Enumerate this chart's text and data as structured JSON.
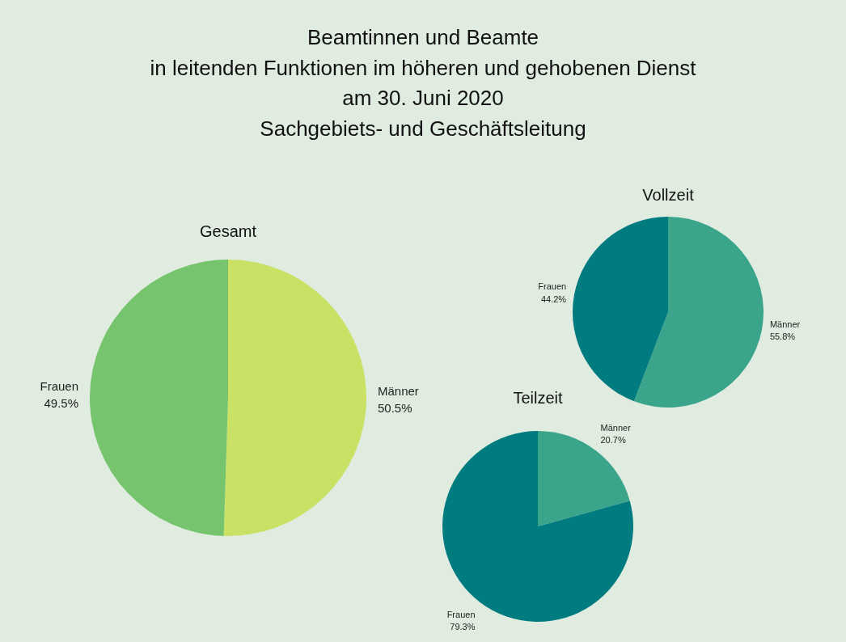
{
  "chart_data": [
    {
      "type": "pie",
      "title": "Beamtinnen und Beamte\nin leitenden Funktionen im höheren und gehobenen Dienst\nam 30. Juni 2020\nSachgebiets- und Geschäftsleitung",
      "subtitle": "Gesamt",
      "categories": [
        "Männer",
        "Frauen"
      ],
      "values": [
        50.5,
        49.5
      ],
      "colors": [
        "#c9e265",
        "#77c46e"
      ],
      "value_labels": [
        "50.5%",
        "49.5%"
      ],
      "legend": false
    },
    {
      "type": "pie",
      "title": "Vollzeit",
      "categories": [
        "Männer",
        "Frauen"
      ],
      "values": [
        55.8,
        44.2
      ],
      "colors": [
        "#3aa58a",
        "#007b7f"
      ],
      "value_labels": [
        "55.8%",
        "44.2%"
      ],
      "legend": false
    },
    {
      "type": "pie",
      "title": "Teilzeit",
      "categories": [
        "Männer",
        "Frauen"
      ],
      "values": [
        20.7,
        79.3
      ],
      "colors": [
        "#3aa58a",
        "#007b7f"
      ],
      "value_labels": [
        "20.7%",
        "79.3%"
      ],
      "legend": false
    }
  ]
}
